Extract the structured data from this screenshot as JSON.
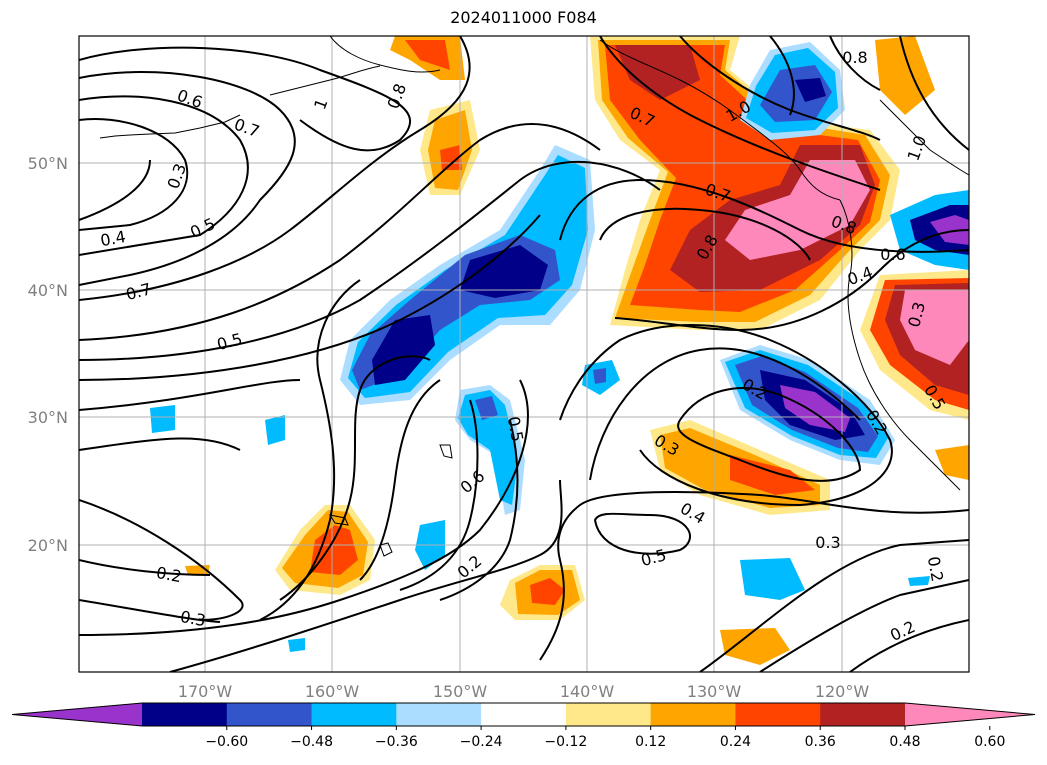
{
  "title": "2024011000 F084",
  "map": {
    "extent": {
      "lon": [
        -180,
        -110
      ],
      "lat": [
        10,
        60
      ]
    },
    "lon_labels": [
      "170°W",
      "160°W",
      "150°W",
      "140°W",
      "130°W",
      "120°W"
    ],
    "lat_labels": [
      "50°N",
      "40°N",
      "30°N",
      "20°N"
    ],
    "contour_labels": [
      "0.6",
      "0.7",
      "0.8",
      "1",
      "0.3",
      "0.4",
      "0.5",
      "0.7",
      "0.5",
      "0.2",
      "0.3",
      "0.6",
      "0.2",
      "0.5",
      "0.7",
      "0.8",
      "0.7",
      "1.0",
      "0.8",
      "0.8",
      "0.6",
      "0.4",
      "0.3",
      "0.2",
      "0.3",
      "0.4",
      "0.5",
      "0.3",
      "0.2",
      "1.0",
      "0.2",
      "0.2",
      "0.5"
    ]
  },
  "colorbar": {
    "ticks": [
      "-0.60",
      "-0.48",
      "-0.36",
      "-0.24",
      "-0.12",
      "0.12",
      "0.24",
      "0.36",
      "0.48",
      "0.60"
    ],
    "colors": [
      "#9933cc",
      "#000088",
      "#3355cc",
      "#00bbff",
      "#aaddff",
      "#ffffff",
      "#ffe88a",
      "#ffa500",
      "#ff4400",
      "#b22222",
      "#ff88bb"
    ]
  }
}
